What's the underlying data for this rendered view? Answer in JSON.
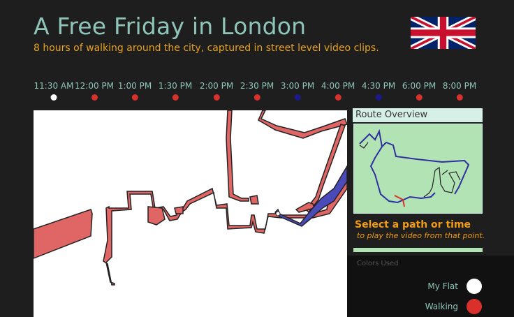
{
  "header": {
    "title": "A Free Friday in London",
    "subtitle": "8 hours of walking around the city, captured in street level video clips."
  },
  "flag_icon": "uk-flag-icon",
  "timeline": [
    {
      "label": "11:30 AM",
      "color": "#ffffff"
    },
    {
      "label": "12:00 PM",
      "color": "#d9302c"
    },
    {
      "label": "1:00 PM",
      "color": "#d9302c"
    },
    {
      "label": "1:30 PM",
      "color": "#d9302c"
    },
    {
      "label": "2:00 PM",
      "color": "#d9302c"
    },
    {
      "label": "2:30 PM",
      "color": "#d9302c"
    },
    {
      "label": "3:00 PM",
      "color": "#1a1a8c"
    },
    {
      "label": "4:00 PM",
      "color": "#d9302c"
    },
    {
      "label": "4:30 PM",
      "color": "#1a1a8c"
    },
    {
      "label": "6:00 PM",
      "color": "#d9302c"
    },
    {
      "label": "8:00 PM",
      "color": "#d9302c"
    }
  ],
  "route_overview": {
    "header": "Route Overview"
  },
  "select": {
    "title": "Select a path or time",
    "subtitle": "to play the video from that point."
  },
  "legend": {
    "title": "Colors Used",
    "items": [
      {
        "label": "My Flat",
        "color": "#ffffff"
      },
      {
        "label": "Walking",
        "color": "#d9302c"
      }
    ]
  },
  "colors": {
    "walking_path": "#e06666",
    "transit_path": "#4a4ab8",
    "accent": "#e8a21d",
    "teal": "#8fc4b8"
  }
}
